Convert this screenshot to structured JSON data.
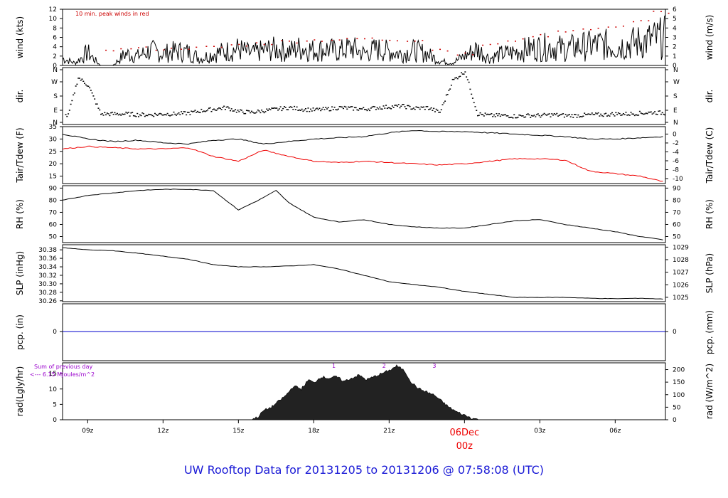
{
  "footer": {
    "title": "UW Rooftop Data for 20131205  to  20131206 @ 07:58:08  (UTC)"
  },
  "xaxis": {
    "ticks": [
      {
        "label": "09z",
        "hour": 9
      },
      {
        "label": "12z",
        "hour": 12
      },
      {
        "label": "15z",
        "hour": 15
      },
      {
        "label": "18z",
        "hour": 18
      },
      {
        "label": "21z",
        "hour": 21
      },
      {
        "label": "03z",
        "hour": 27
      },
      {
        "label": "06z",
        "hour": 30
      }
    ],
    "day_marker": {
      "date": "06Dec",
      "time": "00z",
      "hour": 24
    },
    "start_hour": 8.0,
    "end_hour": 32.0
  },
  "chart_data": [
    {
      "type": "line",
      "id": "wind",
      "ylabel": "wind (kts)",
      "ylabel_right": "wind (m/s)",
      "ylim": [
        0,
        12
      ],
      "yticks": [
        0,
        2,
        4,
        6,
        8,
        10,
        12
      ],
      "ylim_right": [
        0,
        6
      ],
      "yticks_right": [
        0,
        1,
        2,
        3,
        4,
        5,
        6
      ],
      "annotation": "10 min. peak winds in red",
      "series": [
        {
          "x": [
            8,
            8.5,
            9,
            9.5,
            10,
            10.5,
            11,
            11.5,
            12,
            12.5,
            13,
            13.5,
            14,
            14.5,
            15,
            15.5,
            16,
            16.5,
            17,
            17.5,
            18,
            18.5,
            19,
            19.5,
            20,
            20.5,
            21,
            21.5,
            22,
            22.5,
            23,
            23.5,
            24,
            24.5,
            25,
            25.5,
            26,
            26.5,
            27,
            27.5,
            28,
            28.5,
            29,
            29.5,
            30,
            30.5,
            31,
            31.5,
            32
          ],
          "values": [
            1.5,
            0.5,
            2.8,
            0,
            0,
            2.5,
            2,
            3.2,
            2.5,
            3,
            2.8,
            1.5,
            2.5,
            3,
            3.5,
            2.5,
            3.2,
            3.5,
            3,
            3.8,
            3.2,
            3.5,
            3,
            3.8,
            2.5,
            3.5,
            3,
            2.5,
            3.2,
            2.5,
            1,
            0.5,
            2,
            3.5,
            1.5,
            2.5,
            2.8,
            3.5,
            3.8,
            4,
            3.5,
            4,
            4.2,
            4.5,
            4,
            4.5,
            5,
            5.5,
            6
          ]
        },
        {
          "name": "10 min. peak winds",
          "color": "#cc0000",
          "x": [
            10,
            11,
            12,
            13,
            14,
            15,
            16,
            17,
            18,
            19,
            20,
            21,
            22,
            23,
            24,
            25,
            26,
            27,
            28,
            29,
            30,
            31,
            31.8
          ],
          "values": [
            3.5,
            3.8,
            3.6,
            3.8,
            4,
            4.5,
            4.8,
            5.2,
            5.5,
            5.6,
            5.8,
            5.6,
            5.5,
            3.5,
            2.5,
            4.5,
            5.5,
            6.5,
            7.5,
            7.8,
            8.5,
            9.5,
            11.5
          ]
        }
      ]
    },
    {
      "type": "scatter",
      "id": "dir",
      "ylabel": "dir.",
      "ylabel_right": "dir.",
      "yticks": [
        "N",
        "E",
        "S",
        "W",
        "N"
      ],
      "series": [
        {
          "x": [
            8.2,
            8.6,
            9,
            9.5,
            10,
            10.5,
            11,
            11.5,
            12,
            12.5,
            13,
            13.5,
            14,
            14.5,
            15,
            15.5,
            16,
            16.5,
            17,
            17.5,
            18,
            18.5,
            19,
            19.5,
            20,
            20.5,
            21,
            21.5,
            22,
            22.5,
            23,
            23.5,
            24,
            24.5,
            25,
            25.5,
            26,
            26.5,
            27,
            27.5,
            28,
            28.5,
            29,
            29.5,
            30,
            30.5,
            31,
            31.5,
            32
          ],
          "values": [
            60,
            300,
            250,
            70,
            70,
            70,
            65,
            65,
            70,
            70,
            75,
            90,
            100,
            110,
            85,
            80,
            90,
            100,
            110,
            100,
            95,
            100,
            110,
            105,
            100,
            110,
            115,
            120,
            105,
            110,
            80,
            280,
            340,
            70,
            60,
            60,
            55,
            60,
            60,
            65,
            60,
            60,
            65,
            65,
            70,
            70,
            75,
            80,
            75
          ]
        }
      ]
    },
    {
      "type": "line",
      "id": "temp",
      "ylabel": "Tair/Tdew (F)",
      "ylabel_right": "Tair/Tdew (C)",
      "ylim": [
        12,
        35
      ],
      "yticks": [
        15,
        20,
        25,
        30,
        35
      ],
      "yticks_right": [
        -10,
        -8,
        -6,
        -4,
        -2,
        0
      ],
      "series": [
        {
          "name": "Tair",
          "x": [
            8,
            9,
            10,
            11,
            12,
            13,
            14,
            15,
            16,
            17,
            18,
            19,
            20,
            21,
            22,
            23,
            24,
            25,
            26,
            27,
            28,
            29,
            30,
            31,
            32
          ],
          "values": [
            32,
            30,
            29,
            29.5,
            28.5,
            28,
            29.5,
            30,
            28,
            29,
            30,
            30.5,
            31,
            32.5,
            33.5,
            33,
            33,
            32.5,
            32,
            31.5,
            31,
            30,
            30,
            30.5,
            31
          ]
        },
        {
          "name": "Tdew",
          "color": "#ee0000",
          "x": [
            8,
            9,
            10,
            11,
            12,
            13,
            14,
            15,
            16,
            17,
            18,
            19,
            20,
            21,
            22,
            23,
            24,
            25,
            26,
            27,
            28,
            29,
            30,
            31,
            32
          ],
          "values": [
            26,
            27,
            26.5,
            26,
            26,
            26.5,
            23,
            21,
            25.5,
            23,
            21,
            20.5,
            21,
            20.5,
            20,
            19.5,
            20,
            21,
            22,
            22,
            21.5,
            17,
            16,
            15,
            12.5
          ]
        }
      ]
    },
    {
      "type": "line",
      "id": "rh",
      "ylabel": "RH (%)",
      "ylabel_right": "RH (%)",
      "ylim": [
        45,
        92
      ],
      "yticks": [
        50,
        60,
        70,
        80,
        90
      ],
      "series": [
        {
          "x": [
            8,
            9,
            10,
            11,
            12,
            13,
            14,
            15,
            15.8,
            16.5,
            17,
            18,
            19,
            20,
            21,
            22,
            23,
            24,
            25,
            26,
            27,
            28,
            29,
            30,
            31,
            32
          ],
          "values": [
            80,
            84,
            86,
            88,
            89,
            89,
            88,
            72,
            80,
            88,
            78,
            66,
            62,
            64,
            60,
            58,
            57,
            57,
            60,
            63,
            64,
            60,
            57,
            54,
            50,
            47
          ]
        }
      ]
    },
    {
      "type": "line",
      "id": "slp",
      "ylabel": "SLP (inHg)",
      "ylabel_right": "SLP (hPa)",
      "ylim": [
        30.258,
        30.392
      ],
      "yticks": [
        30.26,
        30.28,
        30.3,
        30.32,
        30.34,
        30.36,
        30.38
      ],
      "yticks_right": [
        1025,
        1026,
        1027,
        1028,
        1029
      ],
      "series": [
        {
          "x": [
            8,
            9,
            10,
            11,
            12,
            13,
            14,
            15,
            16,
            17,
            18,
            19,
            20,
            21,
            22,
            23,
            24,
            25,
            26,
            27,
            28,
            29,
            30,
            31,
            32
          ],
          "values": [
            30.385,
            30.38,
            30.378,
            30.372,
            30.365,
            30.358,
            30.345,
            30.34,
            30.34,
            30.342,
            30.345,
            30.335,
            30.32,
            30.305,
            30.298,
            30.292,
            30.282,
            30.275,
            30.268,
            30.268,
            30.268,
            30.266,
            30.265,
            30.266,
            30.264
          ]
        }
      ]
    },
    {
      "type": "line",
      "id": "pcp",
      "ylabel": "pcp. (in)",
      "ylabel_right": "pcp. (mm)",
      "yticks": [
        0
      ],
      "yticks_right": [
        0
      ],
      "series": [
        {
          "color": "#0000cc",
          "x": [
            8,
            32
          ],
          "values": [
            0,
            0
          ]
        }
      ]
    },
    {
      "type": "area",
      "id": "rad",
      "ylabel": "rad(Lgly/hr)",
      "ylabel_right": "rad (W/m^2)",
      "ylim": [
        0,
        18.5
      ],
      "yticks": [
        0,
        5,
        10,
        15
      ],
      "yticks_right": [
        0,
        50,
        100,
        150,
        200
      ],
      "annotation_lines": [
        "Sum of previous day",
        "<--- 6.15 MJoules/m^2"
      ],
      "markers": [
        {
          "label": "1",
          "hour": 18.8
        },
        {
          "label": "2",
          "hour": 20.8
        },
        {
          "label": "3",
          "hour": 22.8
        }
      ],
      "series": [
        {
          "x": [
            15.5,
            15.8,
            16,
            16.3,
            16.6,
            16.9,
            17.2,
            17.5,
            17.8,
            18,
            18.3,
            18.6,
            18.9,
            19.2,
            19.5,
            19.8,
            20.1,
            20.4,
            20.7,
            21,
            21.3,
            21.6,
            21.9,
            22.2,
            22.5,
            22.8,
            23.1,
            23.4,
            23.7,
            24,
            24.3,
            24.6
          ],
          "values": [
            0,
            1,
            3,
            4,
            6,
            8,
            11,
            10,
            13,
            12,
            14,
            13.5,
            14,
            12.5,
            13.5,
            14.5,
            13,
            14,
            15,
            16,
            17.5,
            16,
            12,
            10,
            9,
            8,
            6,
            4,
            2.5,
            1.5,
            0.5,
            0
          ]
        }
      ]
    }
  ]
}
